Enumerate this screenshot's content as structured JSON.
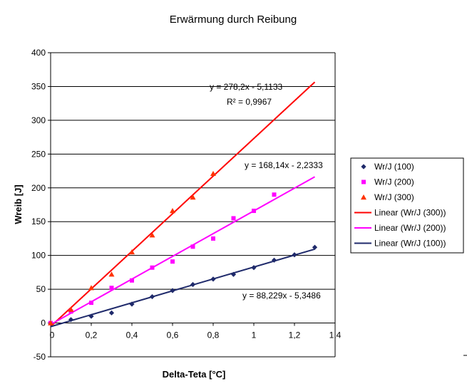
{
  "chart_data": {
    "type": "scatter",
    "title": "Erwärmung durch Reibung",
    "xlabel": "Delta-Teta [°C]",
    "ylabel": "Wreib  [J]",
    "xlim": [
      0,
      1.4
    ],
    "ylim": [
      -50,
      400
    ],
    "x_ticks": [
      "0",
      "0,2",
      "0,4",
      "0,6",
      "0,8",
      "1",
      "1,2",
      "1,4"
    ],
    "y_ticks": [
      "-50",
      "0",
      "50",
      "100",
      "150",
      "200",
      "250",
      "300",
      "350",
      "400"
    ],
    "grid": "horizontal",
    "legend_position": "right",
    "series": [
      {
        "name": "Wr/J (100)",
        "marker": "diamond",
        "color": "#1f2a6b",
        "x": [
          0,
          0.1,
          0.2,
          0.3,
          0.4,
          0.5,
          0.6,
          0.7,
          0.8,
          0.9,
          1.0,
          1.1,
          1.2,
          1.3
        ],
        "y": [
          0,
          5,
          10,
          15,
          28,
          39,
          48,
          57,
          65,
          72,
          82,
          93,
          101,
          112
        ]
      },
      {
        "name": "Wr/J (200)",
        "marker": "square",
        "color": "#ff00ff",
        "x": [
          0,
          0.1,
          0.2,
          0.3,
          0.4,
          0.5,
          0.6,
          0.7,
          0.8,
          0.9,
          1.0,
          1.1
        ],
        "y": [
          0,
          17,
          30,
          52,
          63,
          82,
          91,
          113,
          125,
          155,
          166,
          190
        ]
      },
      {
        "name": "Wr/J (300)",
        "marker": "triangle",
        "color": "#ff3300",
        "x": [
          0,
          0.1,
          0.2,
          0.3,
          0.4,
          0.5,
          0.6,
          0.7,
          0.8
        ],
        "y": [
          0,
          20,
          52,
          72,
          105,
          130,
          166,
          186,
          221
        ]
      }
    ],
    "trendlines": [
      {
        "name": "Linear (Wr/J (300))",
        "color": "#ff0000",
        "slope": 278.2,
        "intercept": -5.1133,
        "x_range": [
          0,
          1.3
        ]
      },
      {
        "name": "Linear (Wr/J (200))",
        "color": "#ff00ff",
        "slope": 168.14,
        "intercept": -2.2333,
        "x_range": [
          0,
          1.3
        ]
      },
      {
        "name": "Linear (Wr/J (100))",
        "color": "#1f2a6b",
        "slope": 88.229,
        "intercept": -5.3486,
        "x_range": [
          0,
          1.3
        ]
      }
    ],
    "annotations": {
      "eq300": "y = 278,2x - 5,1133",
      "r2_300": "R² = 0,9967",
      "eq200": "y = 168,14x - 2,2333",
      "eq100": "y = 88,229x - 5,3486"
    },
    "legend": [
      {
        "label": "Wr/J (100)",
        "kind": "marker",
        "marker": "diamond",
        "color": "#1f2a6b"
      },
      {
        "label": "Wr/J (200)",
        "kind": "marker",
        "marker": "square",
        "color": "#ff00ff"
      },
      {
        "label": "Wr/J (300)",
        "kind": "marker",
        "marker": "triangle",
        "color": "#ff3300"
      },
      {
        "label": "Linear (Wr/J (300))",
        "kind": "line",
        "color": "#ff0000"
      },
      {
        "label": "Linear (Wr/J (200))",
        "kind": "line",
        "color": "#ff00ff"
      },
      {
        "label": "Linear (Wr/J (100))",
        "kind": "line",
        "color": "#1f2a6b"
      }
    ]
  }
}
